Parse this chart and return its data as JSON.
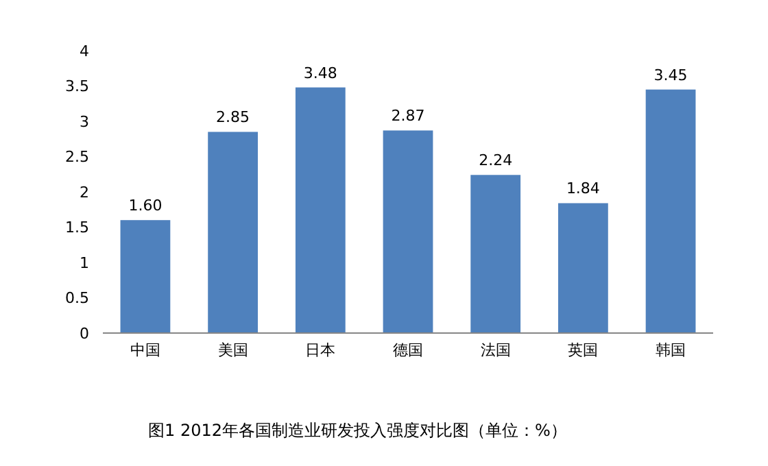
{
  "chart_data": {
    "type": "bar",
    "categories": [
      "中国",
      "美国",
      "日本",
      "德国",
      "法国",
      "英国",
      "韩国"
    ],
    "values": [
      1.6,
      2.85,
      3.48,
      2.87,
      2.24,
      1.84,
      3.45
    ],
    "value_labels": [
      "1.60",
      "2.85",
      "3.48",
      "2.87",
      "2.24",
      "1.84",
      "3.45"
    ],
    "color": "#4f81bd",
    "ylim": [
      0,
      4
    ],
    "yticks": [
      0,
      0.5,
      1,
      1.5,
      2,
      2.5,
      3,
      3.5,
      4
    ],
    "grid": false,
    "annotations": [
      "图1 2012年各国制造业研发投入强度对比图（单位：%）"
    ]
  }
}
